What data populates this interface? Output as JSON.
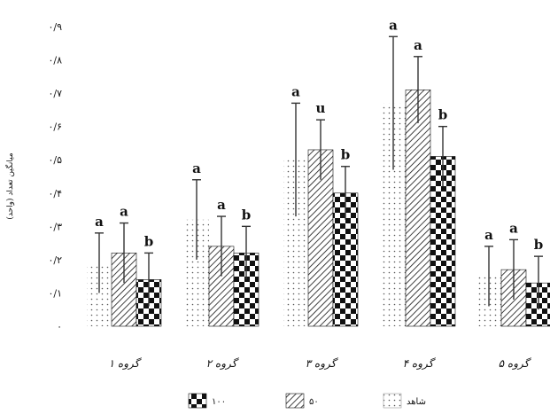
{
  "chart_data": {
    "type": "bar",
    "title": "",
    "xlabel": "",
    "ylabel": "میانگین تعداد (واحد)",
    "ylim": [
      0,
      0.9
    ],
    "yticks": [
      0,
      0.1,
      0.2,
      0.3,
      0.4,
      0.5,
      0.6,
      0.7,
      0.8,
      0.9
    ],
    "ytick_labels": [
      "۰",
      "۰/۱",
      "۰/۲",
      "۰/۳",
      "۰/۴",
      "۰/۵",
      "۰/۶",
      "۰/۷",
      "۰/۸",
      "۰/۹"
    ],
    "categories": [
      "گروه ۱",
      "گروه ۲",
      "گروه ۳",
      "گروه ۴",
      "گروه ۵"
    ],
    "grid": false,
    "legend_position": "bottom",
    "series": [
      {
        "name": "شاهد",
        "pattern": "dots",
        "values": [
          0.19,
          0.32,
          0.5,
          0.67,
          0.15
        ],
        "errors": [
          0.09,
          0.12,
          0.17,
          0.2,
          0.09
        ],
        "letters": [
          "a",
          "a",
          "a",
          "a",
          "a"
        ]
      },
      {
        "name": "۵۰",
        "pattern": "hatch",
        "values": [
          0.22,
          0.24,
          0.53,
          0.71,
          0.17
        ],
        "errors": [
          0.09,
          0.09,
          0.09,
          0.1,
          0.09
        ],
        "letters": [
          "a",
          "a",
          "u",
          "a",
          "a"
        ]
      },
      {
        "name": "۱۰۰",
        "pattern": "checker",
        "values": [
          0.14,
          0.22,
          0.4,
          0.51,
          0.13
        ],
        "errors": [
          0.08,
          0.08,
          0.08,
          0.09,
          0.08
        ],
        "letters": [
          "b",
          "b",
          "b",
          "b",
          "b"
        ]
      }
    ],
    "colors": {
      "ink": "#111111",
      "background": "#ffffff"
    }
  }
}
